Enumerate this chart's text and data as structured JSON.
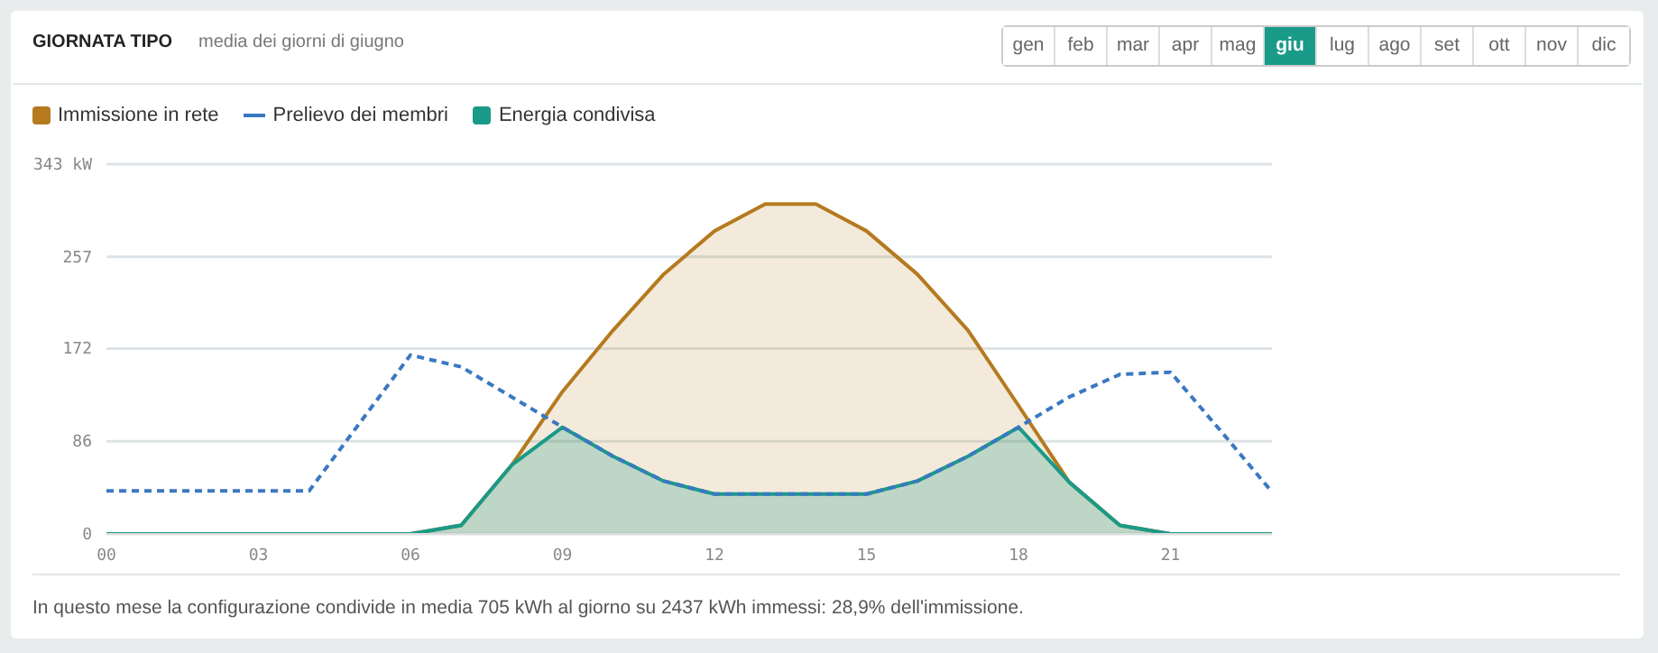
{
  "chart_data": {
    "type": "area",
    "title": "GIORNATA TIPO",
    "subtitle": "media dei giorni di giugno",
    "x": [
      0,
      1,
      2,
      3,
      4,
      5,
      6,
      7,
      8,
      9,
      10,
      11,
      12,
      13,
      14,
      15,
      16,
      17,
      18,
      19,
      20,
      21,
      22,
      23
    ],
    "series": [
      {
        "name": "Immissione in rete",
        "type": "area",
        "color": "#b57a1e",
        "values": [
          0,
          0,
          0,
          0,
          0,
          0,
          0,
          8,
          64,
          132,
          189,
          241,
          281,
          306,
          306,
          281,
          241,
          189,
          119,
          48,
          8,
          0,
          0,
          0
        ]
      },
      {
        "name": "Prelievo dei membri",
        "type": "line",
        "line_style": "dashed",
        "color": "#3a78c2",
        "values": [
          40,
          40,
          40,
          40,
          40,
          103,
          166,
          155,
          127,
          99,
          72,
          49,
          37,
          37,
          37,
          37,
          49,
          72,
          99,
          127,
          148,
          150,
          95,
          39
        ]
      },
      {
        "name": "Energia condivisa",
        "type": "area",
        "color": "#1a9a88",
        "values": [
          0,
          0,
          0,
          0,
          0,
          0,
          0,
          8,
          64,
          99,
          72,
          49,
          37,
          37,
          37,
          37,
          49,
          72,
          99,
          48,
          8,
          0,
          0,
          0
        ]
      }
    ],
    "xlim": [
      0,
      23
    ],
    "xticks": [
      {
        "value": 0,
        "label": "00"
      },
      {
        "value": 3,
        "label": "03"
      },
      {
        "value": 6,
        "label": "06"
      },
      {
        "value": 9,
        "label": "09"
      },
      {
        "value": 12,
        "label": "12"
      },
      {
        "value": 15,
        "label": "15"
      },
      {
        "value": 18,
        "label": "18"
      },
      {
        "value": 21,
        "label": "21"
      }
    ],
    "ylim": [
      0,
      343
    ],
    "yticks": [
      0,
      86,
      172,
      257,
      {
        "value": 343,
        "label": "343 kW"
      }
    ],
    "grid": "y",
    "legend": "top left",
    "marker": "none",
    "annotations": [
      "gen",
      "feb",
      "mar",
      "apr",
      "mag",
      "giu",
      "lug",
      "ago",
      "set",
      "ott",
      "nov",
      "dic",
      "In questo mese la configurazione condivide in media 705 kWh al giorno su 2437 kWh immessi: 28,9% dell'immissione."
    ]
  }
}
